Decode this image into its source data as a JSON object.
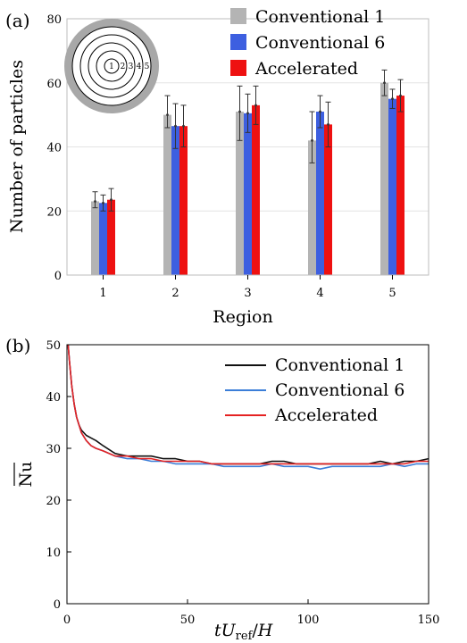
{
  "panel_a_label": "(a)",
  "panel_b_label": "(b)",
  "inset_labels": [
    "1",
    "2",
    "3",
    "4",
    "5"
  ],
  "colors": {
    "conventional_1_bar": "#b4b4b4",
    "conventional_6_bar": "#3d5fe0",
    "accelerated_bar": "#ee1111",
    "conventional_1_line": "#111111",
    "conventional_6_line": "#3b7ed8",
    "accelerated_line": "#e52222",
    "inset_ring": "#a8a8a8"
  },
  "chart_data": [
    {
      "type": "bar",
      "xlabel": "Region",
      "ylabel": "Number of particles",
      "categories": [
        "1",
        "2",
        "3",
        "4",
        "5"
      ],
      "ylim": [
        0,
        80
      ],
      "yticks": [
        0,
        20,
        40,
        60,
        80
      ],
      "grid": true,
      "legend_position": "top-right",
      "series": [
        {
          "name": "Conventional 1",
          "values": [
            23,
            50,
            51,
            42,
            60
          ],
          "err_low": [
            2,
            4,
            9,
            7,
            4
          ],
          "err_high": [
            3,
            6,
            8,
            9,
            4
          ]
        },
        {
          "name": "Conventional 6",
          "values": [
            22.5,
            46.5,
            50.5,
            51,
            55
          ],
          "err_low": [
            2.5,
            7,
            6,
            5,
            3
          ],
          "err_high": [
            2.5,
            7,
            6,
            5,
            3
          ]
        },
        {
          "name": "Accelerated",
          "values": [
            23.5,
            46.5,
            53,
            47,
            56
          ],
          "err_low": [
            3.5,
            6.5,
            6,
            7,
            5
          ],
          "err_high": [
            3.5,
            6.5,
            6,
            7,
            5
          ]
        }
      ]
    },
    {
      "type": "line",
      "xlabel": "tU_ref/H",
      "ylabel": "Nu",
      "xlim": [
        0,
        150
      ],
      "ylim": [
        0,
        50
      ],
      "xticks": [
        0,
        50,
        100,
        150
      ],
      "yticks": [
        0,
        10,
        20,
        30,
        40,
        50
      ],
      "grid": false,
      "legend_position": "top-right",
      "series": [
        {
          "name": "Conventional 1",
          "x": [
            0.5,
            1,
            2,
            3,
            4,
            5,
            6,
            8,
            10,
            12,
            15,
            20,
            25,
            30,
            35,
            40,
            45,
            50,
            55,
            60,
            65,
            70,
            75,
            80,
            85,
            90,
            95,
            100,
            105,
            110,
            115,
            120,
            125,
            130,
            135,
            140,
            145,
            150
          ],
          "y": [
            50,
            47,
            42,
            38.5,
            36,
            34.5,
            33.5,
            32.5,
            32,
            31.5,
            30.5,
            29,
            28.5,
            28.5,
            28.5,
            28,
            28,
            27.5,
            27.5,
            27,
            27,
            27,
            27,
            27,
            27.5,
            27.5,
            27,
            27,
            27,
            27,
            27,
            27,
            27,
            27.5,
            27,
            27.5,
            27.5,
            28
          ]
        },
        {
          "name": "Conventional 6",
          "x": [
            0.5,
            1,
            2,
            3,
            4,
            5,
            6,
            8,
            10,
            12,
            15,
            20,
            25,
            30,
            35,
            40,
            45,
            50,
            55,
            60,
            65,
            70,
            75,
            80,
            85,
            90,
            95,
            100,
            105,
            110,
            115,
            120,
            125,
            130,
            135,
            140,
            145,
            150
          ],
          "y": [
            50,
            47,
            42,
            38.5,
            36,
            34.5,
            33,
            31.5,
            30.5,
            30,
            29.5,
            28.5,
            28,
            28,
            27.5,
            27.5,
            27,
            27,
            27,
            27,
            26.5,
            26.5,
            26.5,
            26.5,
            27,
            26.5,
            26.5,
            26.5,
            26,
            26.5,
            26.5,
            26.5,
            26.5,
            26.5,
            27,
            26.5,
            27,
            27
          ]
        },
        {
          "name": "Accelerated",
          "x": [
            0.5,
            1,
            2,
            3,
            4,
            5,
            6,
            8,
            10,
            12,
            15,
            20,
            25,
            30,
            35,
            40,
            45,
            50,
            55,
            60,
            65,
            70,
            75,
            80,
            85,
            90,
            95,
            100,
            105,
            110,
            115,
            120,
            125,
            130,
            135,
            140,
            145,
            150
          ],
          "y": [
            50,
            47,
            42,
            38.5,
            36,
            34.5,
            33,
            31.5,
            30.5,
            30,
            29.5,
            28.5,
            28.5,
            28,
            28,
            27.5,
            27.5,
            27.5,
            27.5,
            27,
            27,
            27,
            27,
            27,
            27,
            27,
            27,
            27,
            27,
            27,
            27,
            27,
            27,
            27,
            27,
            27,
            27.5,
            27.5
          ]
        }
      ]
    }
  ]
}
